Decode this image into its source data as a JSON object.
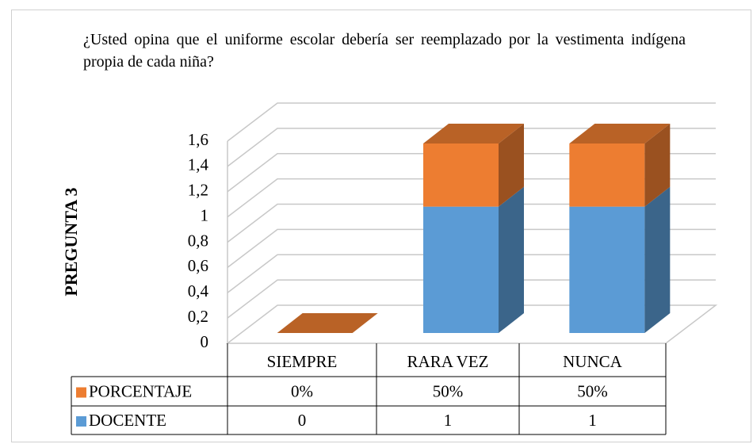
{
  "chart_data": {
    "type": "bar3d_stacked",
    "title": "¿Usted opina que el uniforme escolar debería ser reemplazado por la vestimenta indígena propia de cada niña?",
    "y_label": "PREGUNTA 3",
    "categories": [
      "SIEMPRE",
      "RARA VEZ",
      "NUNCA"
    ],
    "series": [
      {
        "name": "DOCENTE",
        "color": "#5b9bd5",
        "values": [
          0,
          1,
          1
        ]
      },
      {
        "name": "PORCENTAJE",
        "color": "#ed7d31",
        "values": [
          0,
          0.5,
          0.5
        ],
        "value_labels": [
          "0%",
          "50%",
          "50%"
        ]
      }
    ],
    "ylim": [
      0,
      1.6
    ],
    "yticks": [
      0,
      {
        "value": 0.2,
        "label": "0,2"
      },
      {
        "value": 0.4,
        "label": "0,4"
      },
      {
        "value": 0.6,
        "label": "0,6"
      },
      {
        "value": 0.8,
        "label": "0,8"
      },
      1,
      {
        "value": 1.2,
        "label": "1,2"
      },
      {
        "value": 1.4,
        "label": "1,4"
      },
      {
        "value": 1.6,
        "label": "1,6"
      }
    ],
    "grid": true
  }
}
